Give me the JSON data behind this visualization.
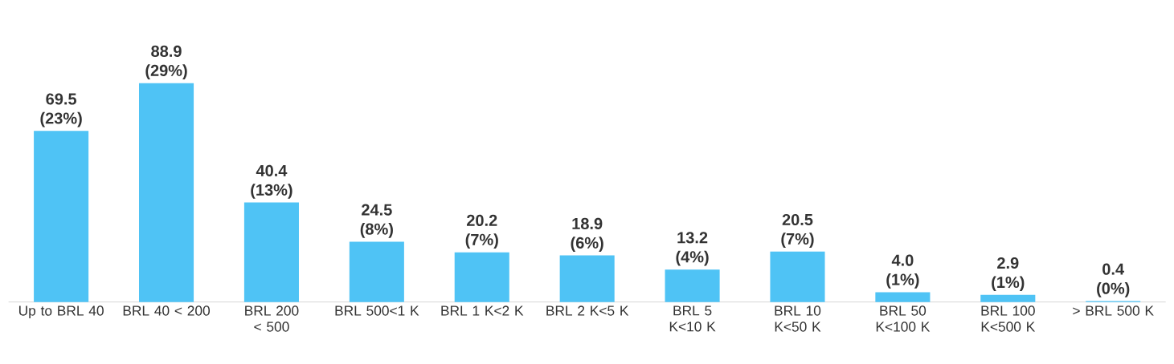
{
  "chart_data": {
    "type": "bar",
    "categories": [
      "Up to BRL 40",
      "BRL 40 < 200",
      "BRL 200 < 500",
      "BRL 500<1 K",
      "BRL 1 K<2 K",
      "BRL 2 K<5 K",
      "BRL 5 K<10 K",
      "BRL 10 K<50 K",
      "BRL 50 K<100 K",
      "BRL 100 K<500 K",
      "> BRL 500 K"
    ],
    "values": [
      69.5,
      88.9,
      40.4,
      24.5,
      20.2,
      18.9,
      13.2,
      20.5,
      4.0,
      2.9,
      0.4
    ],
    "color": "#4fc3f5",
    "value_labels": [
      "69.5 (23%)",
      "88.9 (29%)",
      "40.4 (13%)",
      "24.5 (8%)",
      "20.2 (7%)",
      "18.9 (6%)",
      "13.2 (4%)",
      "20.5 (7%)",
      "4.0 (1%)",
      "2.9 (1%)",
      "0.4 (0%)"
    ]
  }
}
